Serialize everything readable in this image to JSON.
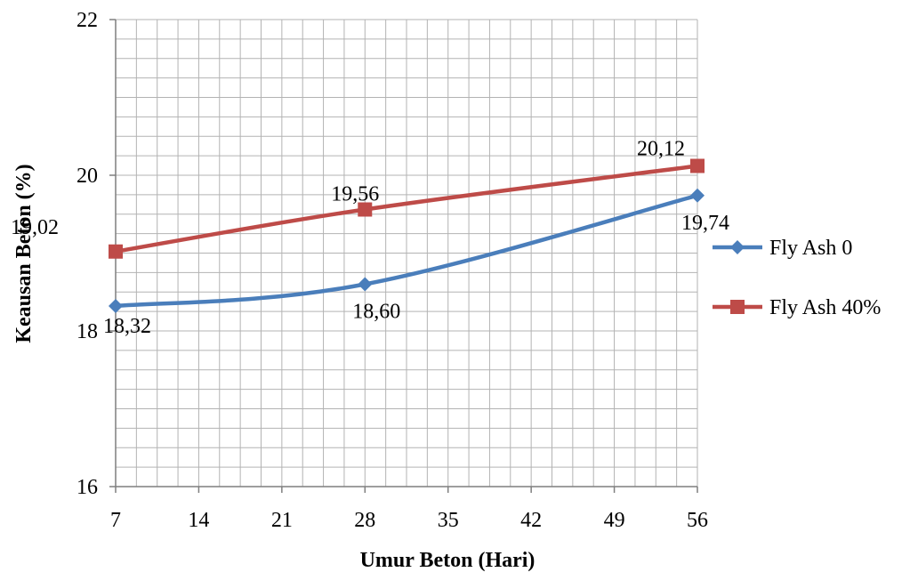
{
  "chart_data": {
    "type": "line",
    "xlabel": "Umur Beton (Hari)",
    "ylabel": "Keausan Beton (%)",
    "xlim": [
      7,
      56
    ],
    "ylim": [
      16,
      22
    ],
    "x_ticks": [
      "7",
      "14",
      "21",
      "28",
      "35",
      "42",
      "49",
      "56"
    ],
    "y_ticks": [
      "16",
      "18",
      "20",
      "22"
    ],
    "grid": true,
    "legend_position": "right",
    "series": [
      {
        "name": "Fly Ash 0",
        "color": "#4a7ebb",
        "marker": "diamond",
        "x": [
          7,
          28,
          56
        ],
        "values": [
          18.32,
          18.6,
          19.74
        ],
        "labels": [
          "18,32",
          "18,60",
          "19,74"
        ]
      },
      {
        "name": "Fly Ash 40%",
        "color": "#be4b48",
        "marker": "square",
        "x": [
          7,
          28,
          56
        ],
        "values": [
          19.02,
          19.56,
          20.12
        ],
        "labels": [
          "19,02",
          "19,56",
          "20,12"
        ]
      }
    ]
  }
}
